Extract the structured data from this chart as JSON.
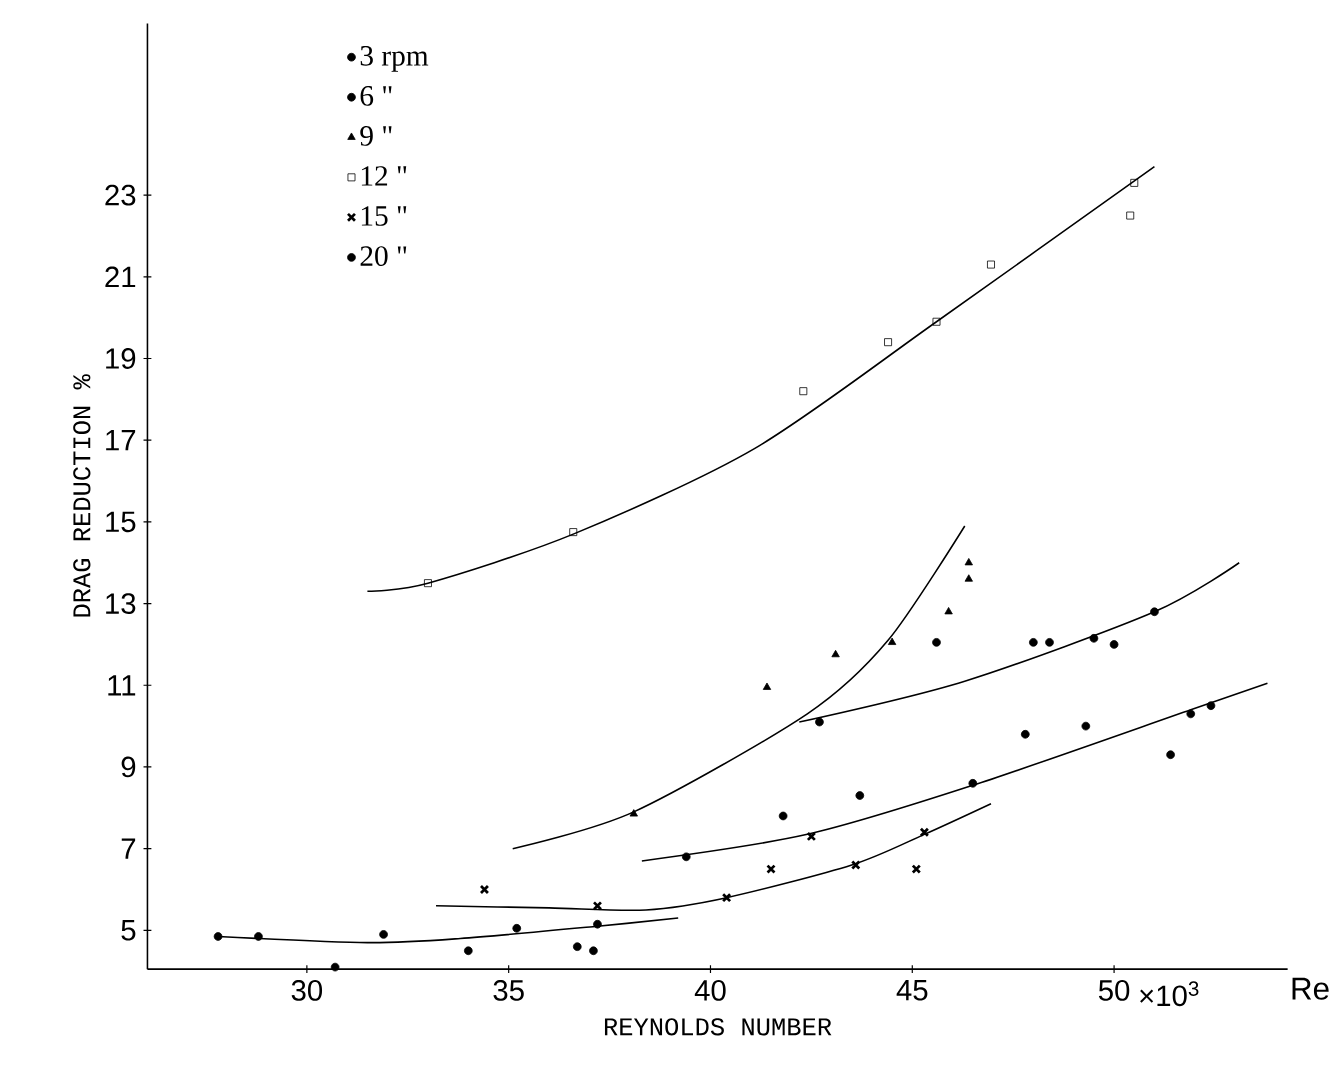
{
  "chart_data": {
    "type": "scatter",
    "xlabel": "REYNOLDS NUMBER",
    "ylabel": "DRAG REDUCTION %",
    "annotations": [
      "×10$^{3}$",
      "Re"
    ],
    "xlim": [
      26.05,
      54.3
    ],
    "ylim": [
      4.05,
      27.2
    ],
    "xticks": [
      30,
      35,
      40,
      45,
      50
    ],
    "yticks": [
      5,
      7,
      9,
      11,
      13,
      15,
      17,
      19,
      21,
      23
    ],
    "legend": "top left",
    "grid": false,
    "series": [
      {
        "name": "3 rpm",
        "color": "#000000",
        "marker": "circle",
        "x": [
          27.8,
          28.8,
          30.7,
          31.9,
          34.0,
          35.2,
          36.7,
          37.1,
          37.2
        ],
        "values": [
          4.85,
          4.85,
          4.1,
          4.9,
          4.5,
          5.05,
          4.6,
          4.5,
          5.15
        ]
      },
      {
        "name": "6 \"",
        "color": "#000000",
        "marker": "circle",
        "x": [
          39.4,
          41.8,
          43.7,
          46.5,
          47.8,
          49.3,
          51.4,
          51.9,
          52.4
        ],
        "values": [
          6.8,
          7.8,
          8.3,
          8.6,
          9.8,
          10.0,
          9.3,
          10.3,
          10.5
        ]
      },
      {
        "name": "9 \"",
        "color": "#000000",
        "marker": "triangle",
        "x": [
          38.1,
          41.4,
          43.1,
          44.5,
          45.9,
          46.4,
          46.4
        ],
        "values": [
          7.85,
          10.95,
          11.75,
          12.05,
          12.8,
          13.6,
          14.0
        ]
      },
      {
        "name": "12 \"",
        "color": "#000000",
        "marker": "square",
        "x": [
          33.0,
          36.6,
          42.3,
          44.4,
          45.6,
          46.95,
          50.5,
          50.4
        ],
        "values": [
          13.5,
          14.75,
          18.2,
          19.4,
          19.9,
          21.3,
          23.3,
          22.5
        ]
      },
      {
        "name": "15 \"",
        "color": "#000000",
        "marker": "cross",
        "x": [
          34.4,
          37.2,
          40.4,
          41.5,
          42.5,
          43.6,
          45.1,
          45.3
        ],
        "values": [
          6.0,
          5.6,
          5.8,
          6.5,
          7.3,
          6.6,
          6.5,
          7.4
        ]
      },
      {
        "name": "20 \"",
        "color": "#000000",
        "marker": "circle",
        "x": [
          42.7,
          45.6,
          48.0,
          48.4,
          49.5,
          50.0,
          51.0
        ],
        "values": [
          10.1,
          12.05,
          12.05,
          12.05,
          12.15,
          12.0,
          12.8
        ]
      },
      {
        "type": "line",
        "color": "#000000",
        "marker": "none",
        "x": [
          31.5,
          33.0,
          36.6,
          41.1,
          45.6,
          51.0
        ],
        "values": [
          13.3,
          13.5,
          14.7,
          16.8,
          19.9,
          23.7
        ]
      },
      {
        "type": "line",
        "color": "#000000",
        "marker": "none",
        "x": [
          35.1,
          38.1,
          42.4,
          44.4,
          46.3
        ],
        "values": [
          7.0,
          7.9,
          10.3,
          12.1,
          14.9
        ]
      },
      {
        "type": "line",
        "color": "#000000",
        "marker": "none",
        "x": [
          42.2,
          46.3,
          51.0,
          53.1
        ],
        "values": [
          10.1,
          11.1,
          12.8,
          14.0
        ]
      },
      {
        "type": "line",
        "color": "#000000",
        "marker": "none",
        "x": [
          38.3,
          42.4,
          46.5,
          51.9,
          53.8
        ],
        "values": [
          6.7,
          7.35,
          8.55,
          10.4,
          11.05
        ]
      },
      {
        "type": "line",
        "color": "#000000",
        "marker": "none",
        "x": [
          33.2,
          36.0,
          38.4,
          40.4,
          43.5,
          45.3,
          46.95
        ],
        "values": [
          5.6,
          5.55,
          5.5,
          5.8,
          6.6,
          7.35,
          8.1
        ]
      },
      {
        "type": "line",
        "color": "#000000",
        "marker": "none",
        "x": [
          27.8,
          31.5,
          33.8,
          37.2,
          39.2
        ],
        "values": [
          4.85,
          4.7,
          4.8,
          5.1,
          5.3
        ]
      }
    ]
  }
}
